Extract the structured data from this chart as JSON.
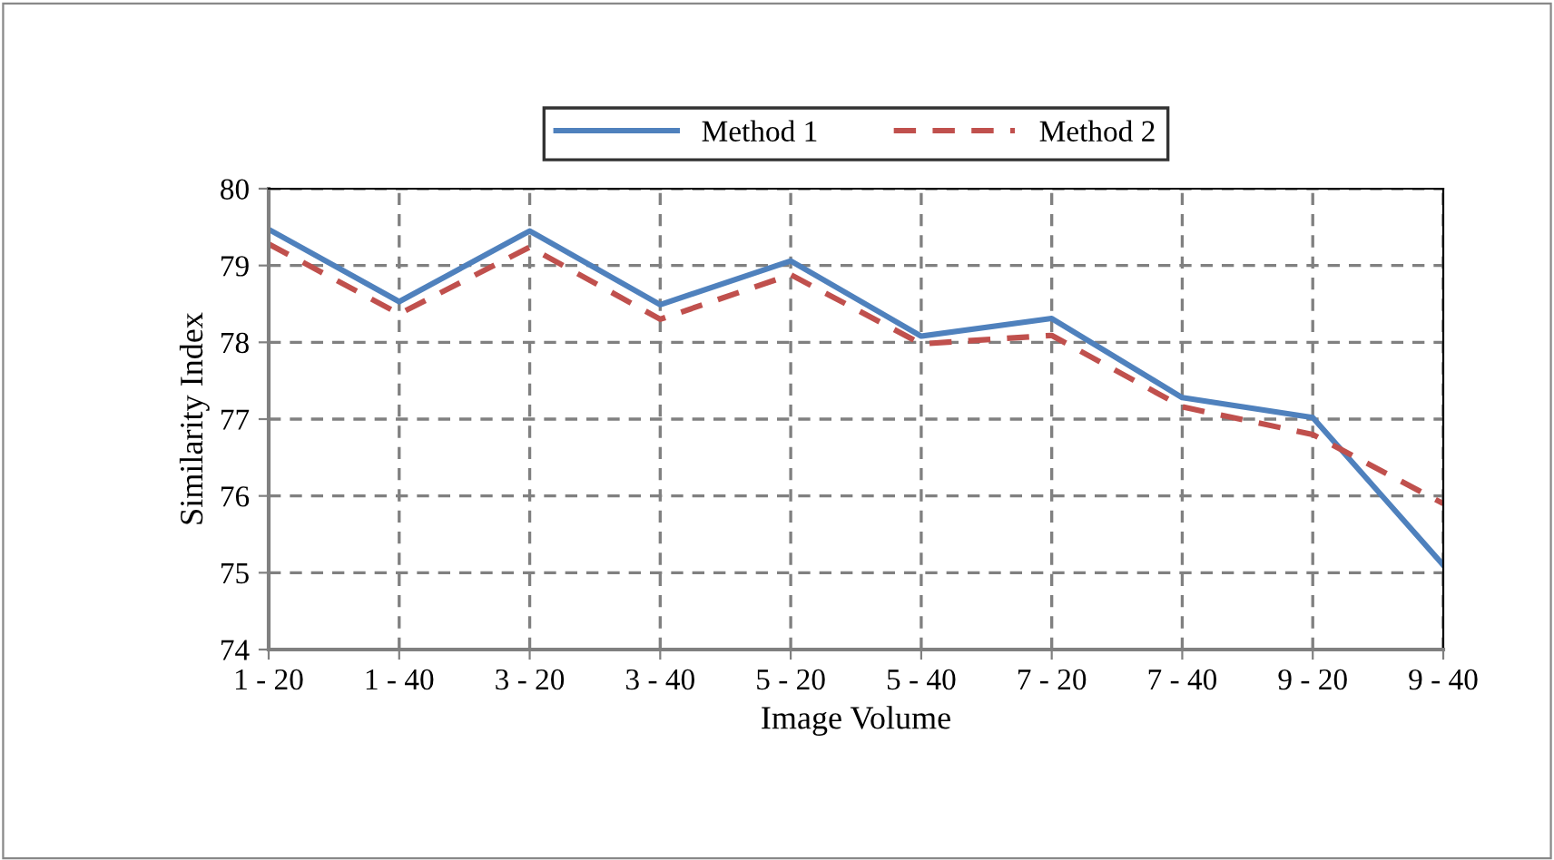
{
  "chart_data": {
    "type": "line",
    "xlabel": "Image Volume",
    "ylabel": "Similarity Index",
    "categories": [
      "1 - 20",
      "1 - 40",
      "3 - 20",
      "3 - 40",
      "5 - 20",
      "5 - 40",
      "7 - 20",
      "7 - 40",
      "9 - 20",
      "9 - 40"
    ],
    "series": [
      {
        "name": "Method 1",
        "color": "#4f81bd",
        "line_style": "solid",
        "values": [
          79.47,
          78.53,
          79.45,
          78.49,
          79.06,
          78.08,
          78.31,
          77.28,
          77.02,
          75.1
        ]
      },
      {
        "name": "Method 2",
        "color": "#c0504d",
        "line_style": "dashed",
        "values": [
          79.28,
          78.37,
          79.24,
          78.3,
          78.88,
          77.98,
          78.09,
          77.16,
          76.8,
          75.9
        ]
      }
    ],
    "ylim": [
      74,
      80
    ],
    "yticks": [
      74,
      75,
      76,
      77,
      78,
      79,
      80
    ],
    "grid": true,
    "legend": "top",
    "marker": "none"
  }
}
